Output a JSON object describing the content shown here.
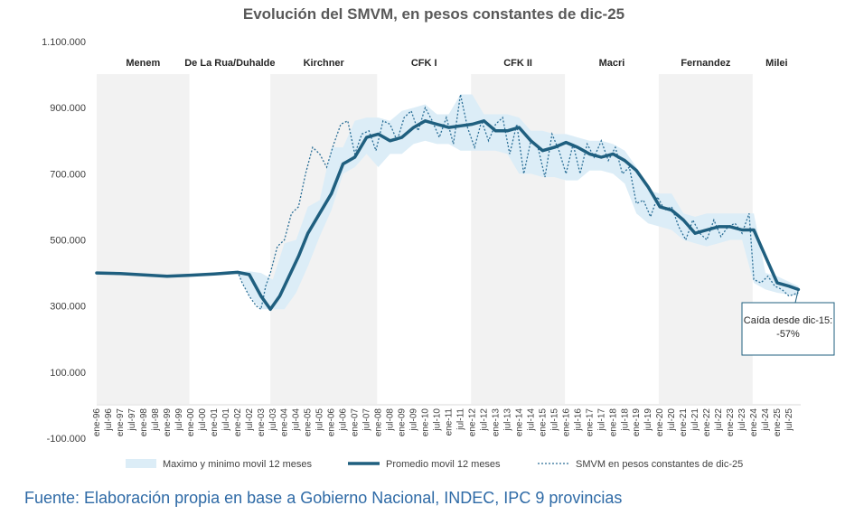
{
  "chart_data": {
    "type": "line",
    "title": "Evolución del SMVM, en pesos constantes de dic-25",
    "ylim": [
      -100000,
      1100000
    ],
    "y_ticks": [
      {
        "value": 1100000,
        "label": "1.100.000"
      },
      {
        "value": 900000,
        "label": "900.000"
      },
      {
        "value": 700000,
        "label": "700.000"
      },
      {
        "value": 500000,
        "label": "500.000"
      },
      {
        "value": 300000,
        "label": "300.000"
      },
      {
        "value": 100000,
        "label": "100.000"
      },
      {
        "value": -100000,
        "label": "-100.000"
      }
    ],
    "x_ticks": [
      "ene-96",
      "jul-96",
      "ene-97",
      "jul-97",
      "ene-98",
      "jul-98",
      "ene-99",
      "jul-99",
      "ene-00",
      "jul-00",
      "ene-01",
      "jul-01",
      "ene-02",
      "jul-02",
      "ene-03",
      "jul-03",
      "ene-04",
      "jul-04",
      "ene-05",
      "jul-05",
      "ene-06",
      "jul-06",
      "ene-07",
      "jul-07",
      "ene-08",
      "jul-08",
      "ene-09",
      "jul-09",
      "ene-10",
      "jul-10",
      "ene-11",
      "jul-11",
      "ene-12",
      "jul-12",
      "ene-13",
      "jul-13",
      "ene-14",
      "jul-14",
      "ene-15",
      "jul-15",
      "ene-16",
      "jul-16",
      "ene-17",
      "jul-17",
      "ene-18",
      "jul-18",
      "ene-19",
      "jul-19",
      "ene-20",
      "jul-20",
      "ene-21",
      "jul-21",
      "ene-22",
      "jul-22",
      "ene-23",
      "jul-23",
      "ene-24",
      "jul-24",
      "ene-25",
      "jul-25"
    ],
    "periods": [
      {
        "label": "Menem",
        "start": 1996.0,
        "end": 1999.95,
        "shaded": true
      },
      {
        "label": "De La Rua/Duhalde",
        "start": 1999.95,
        "end": 2003.4,
        "shaded": false
      },
      {
        "label": "Kirchner",
        "start": 2003.4,
        "end": 2007.95,
        "shaded": true
      },
      {
        "label": "CFK I",
        "start": 2007.95,
        "end": 2011.95,
        "shaded": false
      },
      {
        "label": "CFK II",
        "start": 2011.95,
        "end": 2015.95,
        "shaded": true
      },
      {
        "label": "Macri",
        "start": 2015.95,
        "end": 2019.95,
        "shaded": false
      },
      {
        "label": "Fernandez",
        "start": 2019.95,
        "end": 2023.95,
        "shaded": true
      },
      {
        "label": "Milei",
        "start": 2023.95,
        "end": 2026.0,
        "shaded": false
      }
    ],
    "series": [
      {
        "name": "Promedio movil 12 meses",
        "color": "#1f5f7f",
        "x": [
          1996.0,
          1997.0,
          1998.0,
          1999.0,
          2000.0,
          2001.0,
          2002.0,
          2002.5,
          2003.0,
          2003.4,
          2003.8,
          2004.2,
          2004.6,
          2005.0,
          2005.5,
          2006.0,
          2006.5,
          2007.0,
          2007.5,
          2008.0,
          2008.5,
          2009.0,
          2009.5,
          2010.0,
          2010.5,
          2011.0,
          2011.5,
          2012.0,
          2012.5,
          2013.0,
          2013.5,
          2014.0,
          2014.5,
          2015.0,
          2015.5,
          2016.0,
          2016.5,
          2017.0,
          2017.5,
          2018.0,
          2018.5,
          2019.0,
          2019.5,
          2020.0,
          2020.5,
          2021.0,
          2021.5,
          2022.0,
          2022.5,
          2023.0,
          2023.5,
          2024.0,
          2024.5,
          2025.0,
          2025.5,
          2025.9
        ],
        "y": [
          400000,
          398000,
          394000,
          390000,
          393000,
          397000,
          402000,
          395000,
          330000,
          290000,
          330000,
          390000,
          450000,
          520000,
          580000,
          640000,
          730000,
          750000,
          810000,
          820000,
          800000,
          810000,
          840000,
          860000,
          850000,
          840000,
          845000,
          850000,
          860000,
          830000,
          830000,
          840000,
          800000,
          770000,
          780000,
          795000,
          780000,
          760000,
          750000,
          760000,
          740000,
          710000,
          660000,
          600000,
          590000,
          560000,
          520000,
          530000,
          540000,
          540000,
          530000,
          530000,
          450000,
          370000,
          360000,
          350000
        ]
      },
      {
        "name": "SMVM en pesos constantes de dic-25",
        "color": "#2a6e96",
        "x": [
          1996.0,
          1997.0,
          1998.0,
          1999.0,
          2000.0,
          2001.0,
          2002.0,
          2002.2,
          2002.5,
          2002.8,
          2003.0,
          2003.2,
          2003.4,
          2003.7,
          2004.0,
          2004.3,
          2004.6,
          2004.9,
          2005.2,
          2005.5,
          2005.8,
          2006.1,
          2006.4,
          2006.7,
          2007.0,
          2007.3,
          2007.6,
          2007.9,
          2008.2,
          2008.5,
          2008.8,
          2009.1,
          2009.4,
          2009.7,
          2010.0,
          2010.3,
          2010.6,
          2010.9,
          2011.2,
          2011.5,
          2011.8,
          2012.1,
          2012.4,
          2012.7,
          2013.0,
          2013.3,
          2013.6,
          2013.9,
          2014.2,
          2014.5,
          2014.8,
          2015.1,
          2015.4,
          2015.7,
          2016.0,
          2016.3,
          2016.6,
          2016.9,
          2017.2,
          2017.5,
          2017.8,
          2018.1,
          2018.4,
          2018.7,
          2019.0,
          2019.3,
          2019.6,
          2019.9,
          2020.2,
          2020.5,
          2020.8,
          2021.1,
          2021.4,
          2021.7,
          2022.0,
          2022.3,
          2022.6,
          2022.9,
          2023.2,
          2023.5,
          2023.8,
          2024.0,
          2024.3,
          2024.6,
          2024.9,
          2025.2,
          2025.5,
          2025.9
        ],
        "y": [
          400000,
          398000,
          394000,
          390000,
          393000,
          397000,
          405000,
          370000,
          330000,
          300000,
          290000,
          360000,
          400000,
          480000,
          500000,
          580000,
          600000,
          700000,
          780000,
          760000,
          720000,
          790000,
          850000,
          860000,
          760000,
          820000,
          830000,
          770000,
          860000,
          850000,
          800000,
          870000,
          890000,
          830000,
          900000,
          860000,
          810000,
          870000,
          790000,
          940000,
          840000,
          780000,
          860000,
          800000,
          850000,
          870000,
          760000,
          850000,
          700000,
          800000,
          780000,
          690000,
          820000,
          770000,
          700000,
          790000,
          700000,
          790000,
          750000,
          800000,
          740000,
          780000,
          700000,
          720000,
          610000,
          620000,
          570000,
          630000,
          590000,
          600000,
          540000,
          500000,
          560000,
          520000,
          500000,
          560000,
          510000,
          540000,
          550000,
          520000,
          580000,
          380000,
          370000,
          390000,
          360000,
          350000,
          330000,
          340000
        ]
      },
      {
        "name": "Maximo y minimo movil 12 meses",
        "color": "#dcedf7",
        "x": [
          2002.0,
          2002.5,
          2003.0,
          2003.5,
          2004.0,
          2004.5,
          2005.0,
          2005.5,
          2006.0,
          2006.5,
          2007.0,
          2007.5,
          2008.0,
          2008.5,
          2009.0,
          2009.5,
          2010.0,
          2010.5,
          2011.0,
          2011.5,
          2012.0,
          2012.5,
          2013.0,
          2013.5,
          2014.0,
          2014.5,
          2015.0,
          2015.5,
          2016.0,
          2016.5,
          2017.0,
          2017.5,
          2018.0,
          2018.5,
          2019.0,
          2019.5,
          2020.0,
          2020.5,
          2021.0,
          2021.5,
          2022.0,
          2022.5,
          2023.0,
          2023.5,
          2024.0,
          2024.5,
          2025.0,
          2025.9
        ],
        "max": [
          405000,
          405000,
          400000,
          380000,
          490000,
          500000,
          600000,
          620000,
          780000,
          780000,
          860000,
          870000,
          870000,
          860000,
          890000,
          900000,
          910000,
          880000,
          880000,
          940000,
          940000,
          880000,
          880000,
          880000,
          870000,
          830000,
          830000,
          820000,
          820000,
          810000,
          800000,
          800000,
          790000,
          770000,
          720000,
          650000,
          640000,
          640000,
          580000,
          570000,
          580000,
          580000,
          580000,
          580000,
          580000,
          400000,
          390000,
          360000
        ],
        "min": [
          400000,
          330000,
          290000,
          290000,
          290000,
          340000,
          420000,
          510000,
          590000,
          700000,
          720000,
          760000,
          720000,
          760000,
          760000,
          790000,
          800000,
          790000,
          790000,
          770000,
          770000,
          770000,
          770000,
          760000,
          700000,
          700000,
          690000,
          690000,
          680000,
          680000,
          710000,
          710000,
          700000,
          670000,
          580000,
          550000,
          540000,
          530000,
          500000,
          490000,
          480000,
          490000,
          500000,
          500000,
          370000,
          350000,
          340000,
          330000
        ]
      }
    ],
    "legend": [
      "Maximo y minimo movil 12 meses",
      "Promedio movil 12 meses",
      "SMVM en pesos constantes de dic-25"
    ],
    "annotation": {
      "line1": "Caída desde dic-15:",
      "line2": "-57%"
    },
    "legend_position": "bottom",
    "grid": false
  },
  "source": "Fuente: Elaboración propia en base a Gobierno Nacional, INDEC, IPC 9 provincias"
}
